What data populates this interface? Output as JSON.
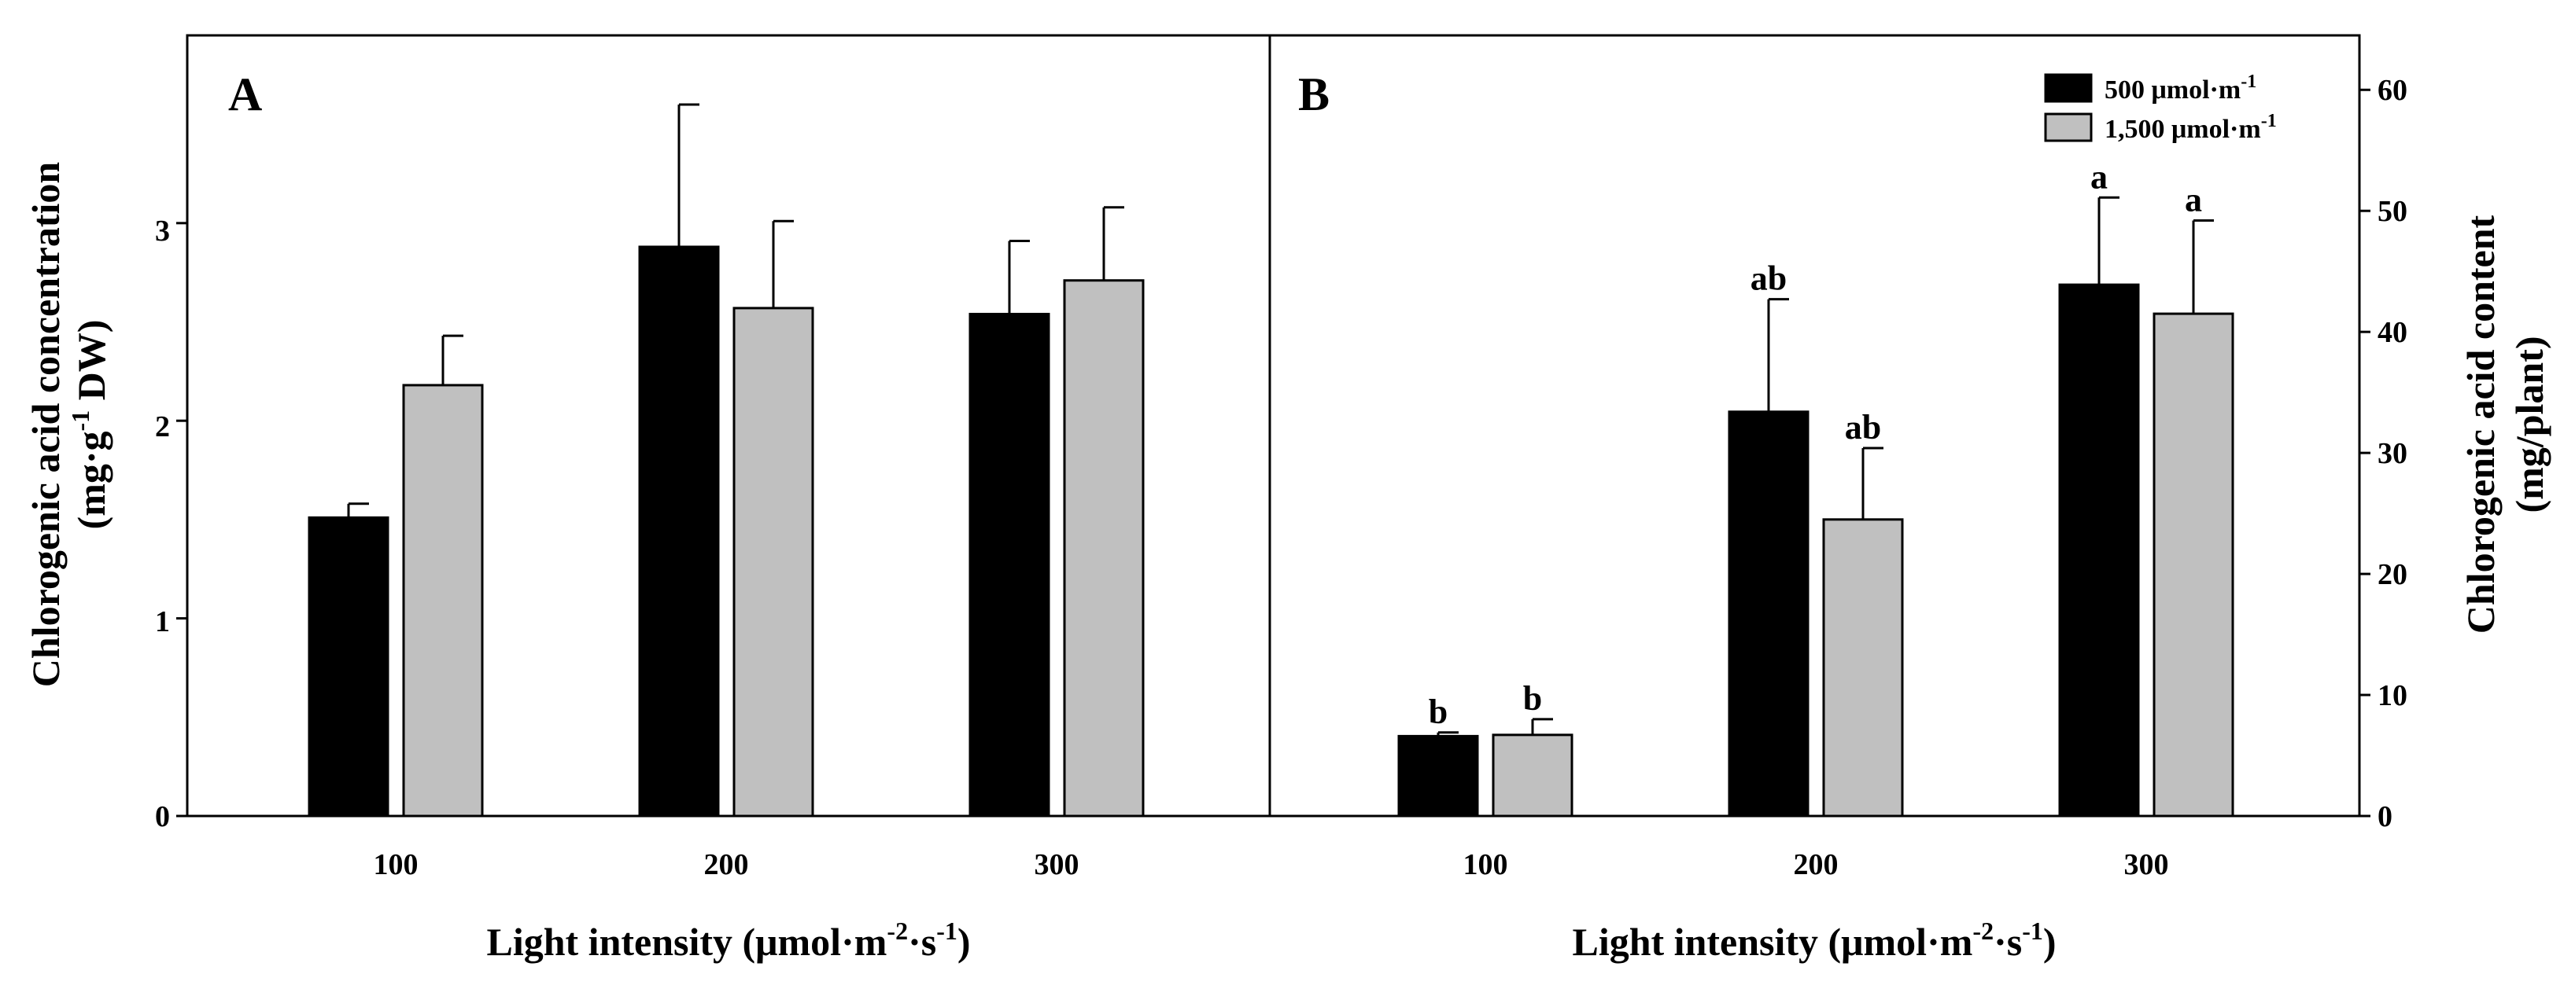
{
  "colors": {
    "series1": "#000000",
    "series2": "#c0c0c0"
  },
  "legend": [
    {
      "label_main": "500 μmol·m",
      "label_sup": "-1"
    },
    {
      "label_main": "1,500 μmol·m",
      "label_sup": "-1"
    }
  ],
  "x_axis": {
    "title_main": "Light intensity (μmol·m",
    "sup1": "-2",
    "mid": "·s",
    "sup2": "-1",
    "close": ")"
  },
  "left_axis": {
    "title_line1": "Chlorogenic acid concentration",
    "title_line2_a": "(mg·g",
    "title_line2_sup": "-1",
    "title_line2_b": " DW)"
  },
  "right_axis": {
    "title_line1": "Chlorogenic acid content",
    "title_line2": "(mg/plant)"
  },
  "chart_data": [
    {
      "panel": "A",
      "type": "bar",
      "categories": [
        "100",
        "200",
        "300"
      ],
      "ylim": [
        0,
        3.95
      ],
      "yticks": [
        "0",
        "1",
        "2",
        "3"
      ],
      "series": [
        {
          "name": "500 μmol·m-1",
          "values": [
            1.51,
            2.88,
            2.54
          ],
          "errors": [
            0.07,
            0.72,
            0.37
          ]
        },
        {
          "name": "1,500 μmol·m-1",
          "values": [
            2.18,
            2.57,
            2.71
          ],
          "errors": [
            0.25,
            0.44,
            0.37
          ]
        }
      ]
    },
    {
      "panel": "B",
      "type": "bar",
      "categories": [
        "100",
        "200",
        "300"
      ],
      "ylim": [
        0,
        64.5
      ],
      "yticks": [
        "0",
        "10",
        "20",
        "30",
        "40",
        "50",
        "60"
      ],
      "series": [
        {
          "name": "500 μmol·m-1",
          "values": [
            6.6,
            33.4,
            43.9
          ],
          "errors": [
            0.3,
            9.3,
            7.2
          ],
          "letters": [
            "b",
            "ab",
            "a"
          ]
        },
        {
          "name": "1,500 μmol·m-1",
          "values": [
            6.7,
            24.5,
            41.5
          ],
          "errors": [
            1.3,
            5.9,
            7.7
          ],
          "letters": [
            "b",
            "ab",
            "a"
          ]
        }
      ]
    }
  ]
}
